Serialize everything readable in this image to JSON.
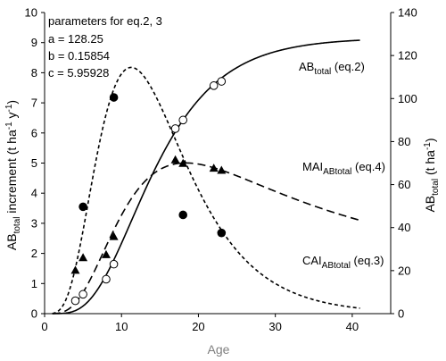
{
  "chart_data": {
    "type": "scatter",
    "xlabel": "Age",
    "xlim": [
      0,
      45
    ],
    "xticks": [
      0,
      10,
      20,
      30,
      40
    ],
    "y_left": {
      "label_main": "AB",
      "label_sub": "total",
      "label_rest": " increment (t ha",
      "label_sup1": "-1",
      "label_mid": " y",
      "label_sup2": "-1",
      "label_end": ")",
      "lim": [
        0,
        10
      ],
      "ticks": [
        0,
        1,
        2,
        3,
        4,
        5,
        6,
        7,
        8,
        9,
        10
      ]
    },
    "y_right": {
      "label_main": "AB",
      "label_sub": "total",
      "label_rest": " (t ha",
      "label_sup": "-1",
      "label_end": ")",
      "lim": [
        0,
        140
      ],
      "ticks": [
        0,
        20,
        40,
        60,
        80,
        100,
        120,
        140
      ]
    },
    "parameters_box": {
      "heading": "parameters for eq.2, 3",
      "lines": [
        "a = 128.25",
        "b = 0.15854",
        "c = 5.95928"
      ]
    },
    "series": [
      {
        "name_main": "AB",
        "name_sub": "total",
        "name_rest": " (eq.2)",
        "axis": "right",
        "line": "solid",
        "curve": {
          "a": 128.25,
          "b": 0.15854,
          "c": 5.95928
        },
        "marker": "open-circle",
        "points": [
          [
            4,
            6
          ],
          [
            5,
            9
          ],
          [
            8,
            16
          ],
          [
            9,
            23
          ],
          [
            17,
            86
          ],
          [
            18,
            90
          ],
          [
            22,
            106
          ],
          [
            23,
            108
          ]
        ]
      },
      {
        "name_main": "CAI",
        "name_sub": "ABtotal",
        "name_rest": " (eq.3)",
        "axis": "left",
        "line": "short-dash",
        "marker": "filled-circle",
        "points": [
          [
            5,
            3.55
          ],
          [
            9,
            7.18
          ],
          [
            18,
            3.28
          ],
          [
            23,
            2.68
          ]
        ]
      },
      {
        "name_main": "MAI",
        "name_sub": "ABtotal",
        "name_rest": " (eq.4)",
        "axis": "left",
        "line": "long-dash",
        "marker": "filled-triangle",
        "points": [
          [
            4,
            1.43
          ],
          [
            5,
            1.85
          ],
          [
            8,
            1.95
          ],
          [
            9,
            2.55
          ],
          [
            17,
            5.1
          ],
          [
            18,
            4.98
          ],
          [
            22,
            4.82
          ],
          [
            23,
            4.75
          ]
        ]
      }
    ],
    "curve_x_range": [
      1,
      41
    ],
    "colors": {
      "axis": "#000000",
      "xlabel": "#7f7f7f"
    }
  }
}
